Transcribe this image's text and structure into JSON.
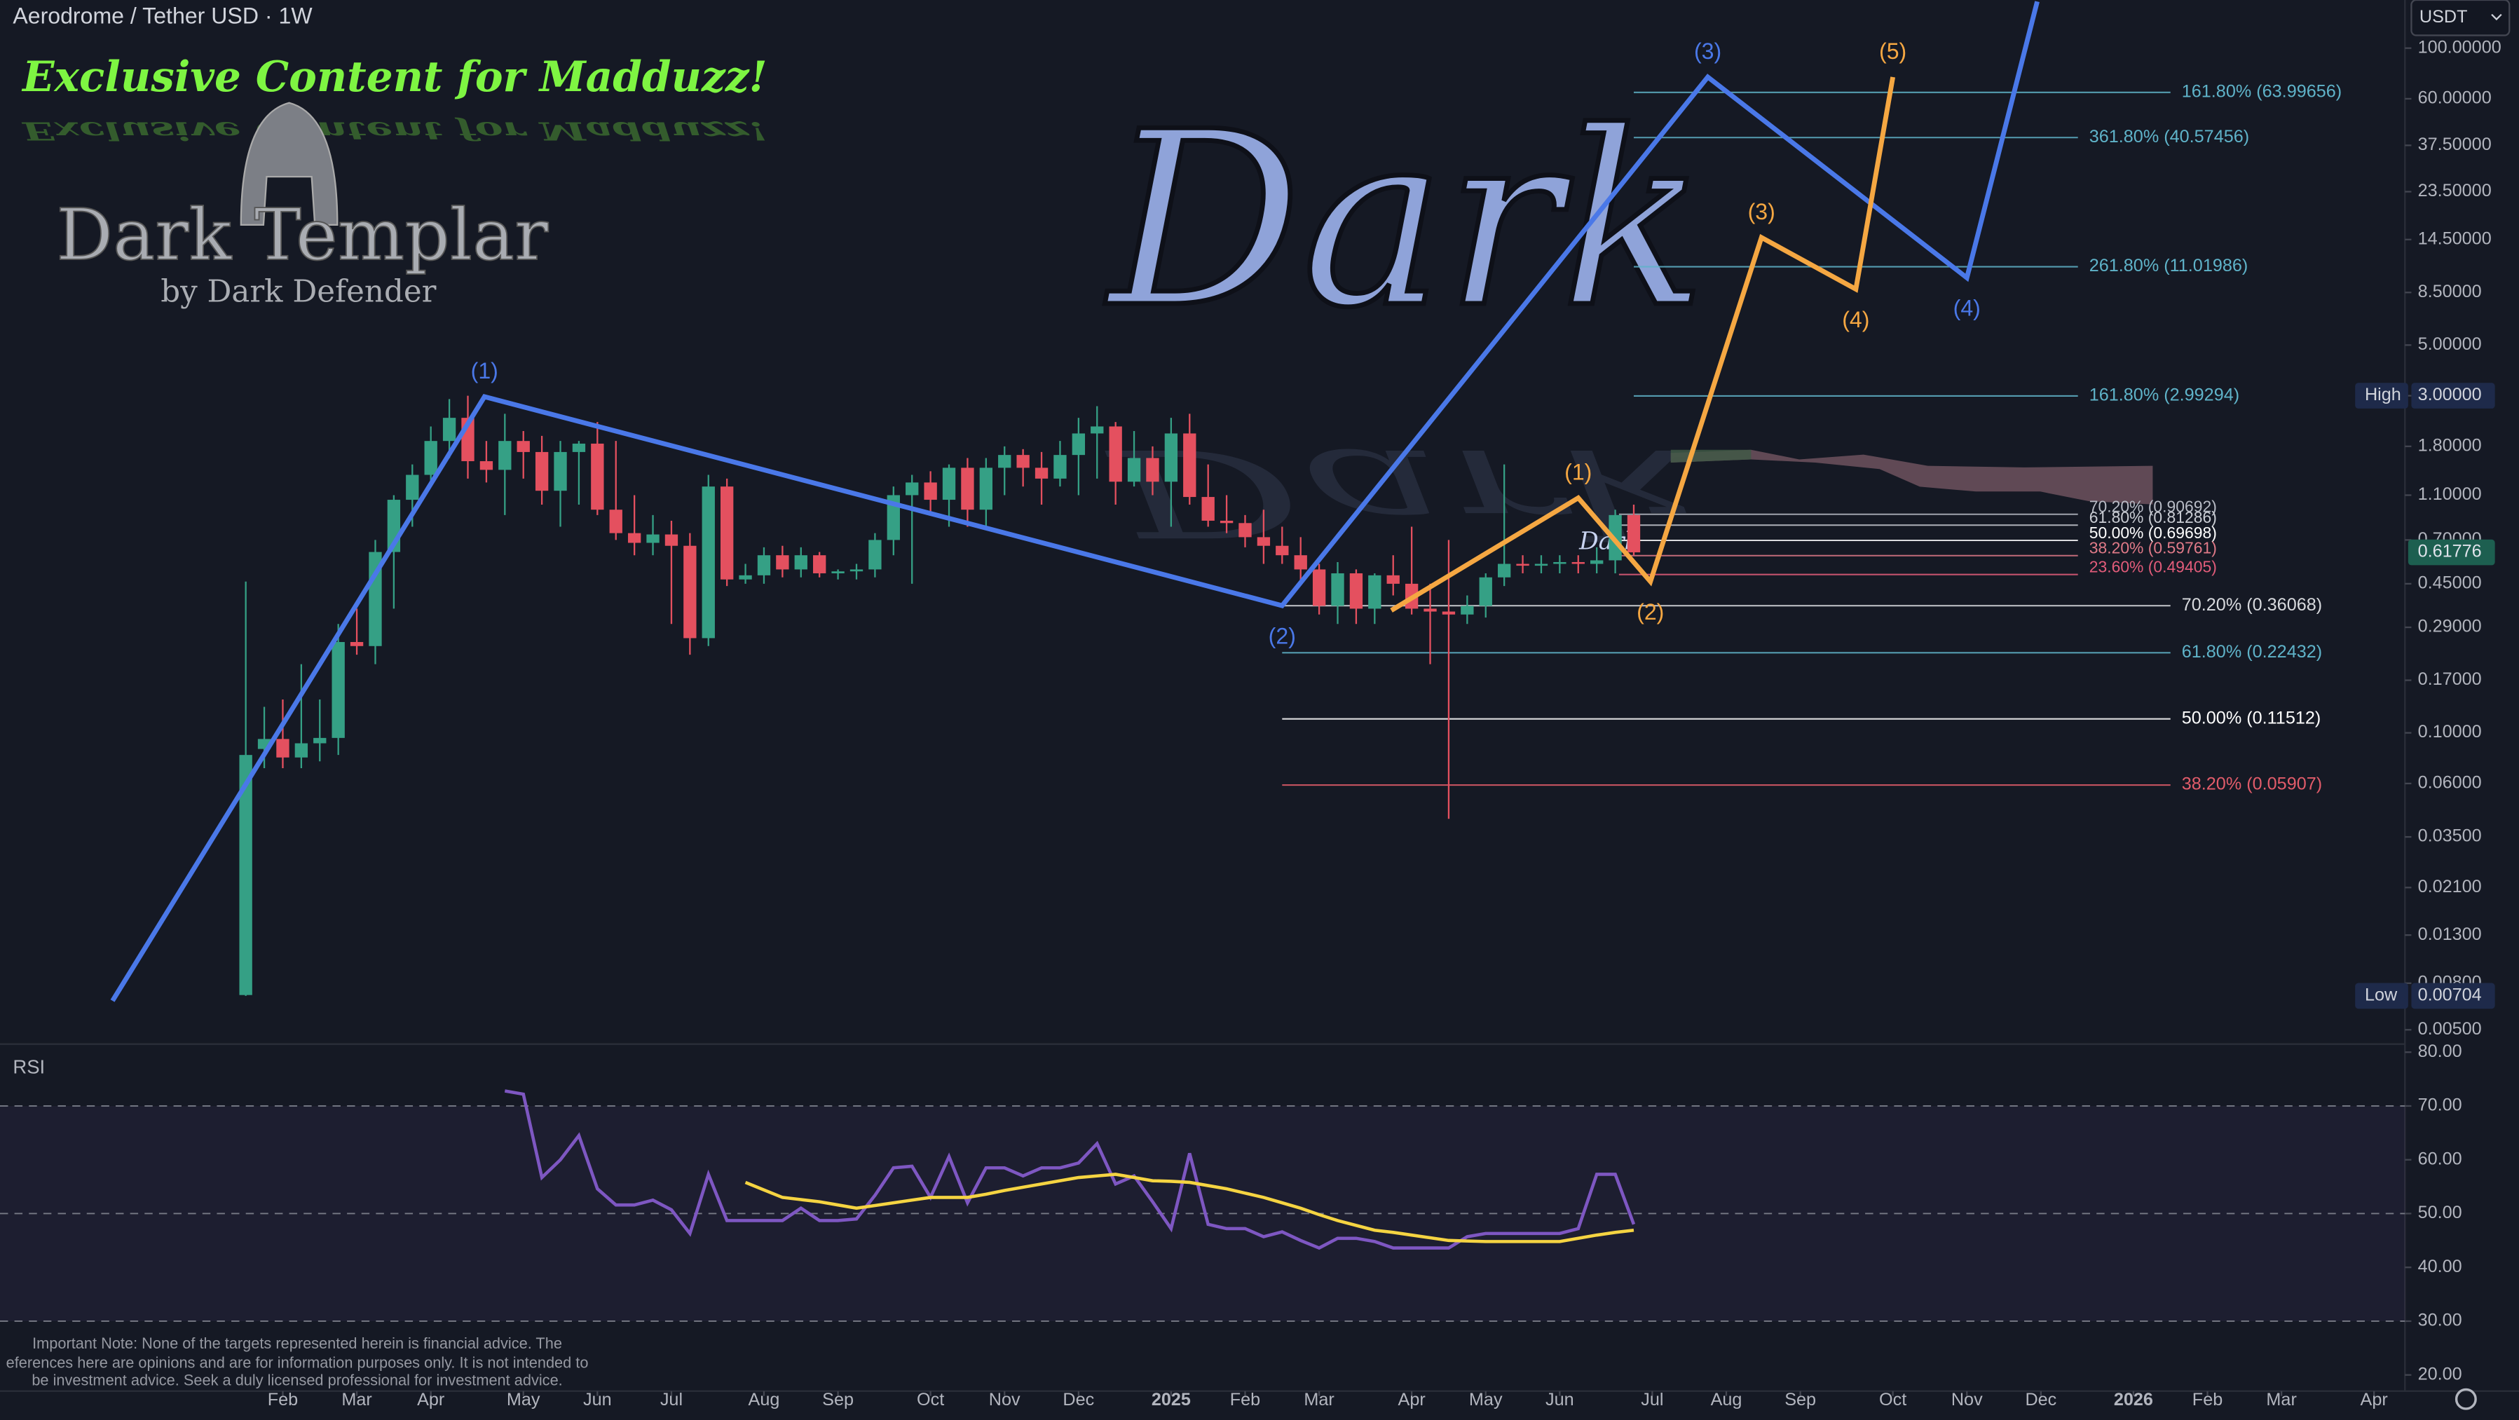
{
  "chart_data": [
    {
      "type": "candlestick",
      "title": "Aerodrome / Tether USD · 1W",
      "open": [
        0.0071,
        0.085,
        0.094,
        0.078,
        0.09,
        0.095,
        0.25,
        0.24,
        0.62,
        1.05,
        1.35,
        1.9,
        2.4,
        1.55,
        1.42,
        1.9,
        1.7,
        1.15,
        1.7,
        1.85,
        0.95,
        0.75,
        0.68,
        0.74,
        0.66,
        0.26,
        1.2,
        0.47,
        0.49,
        0.6,
        0.52,
        0.6,
        0.5,
        0.51,
        0.52,
        0.7,
        1.1,
        1.25,
        1.05,
        1.45,
        0.95,
        1.45,
        1.65,
        1.45,
        1.3,
        1.65,
        2.05,
        2.2,
        1.26,
        1.6,
        1.26,
        2.05,
        1.08,
        0.85,
        0.83,
        0.72,
        0.66,
        0.6,
        0.52,
        0.36,
        0.5,
        0.35,
        0.49,
        0.45,
        0.35,
        0.34,
        0.33,
        0.36,
        0.48,
        0.55,
        0.54,
        0.55,
        0.56,
        0.55,
        0.57,
        0.9
      ],
      "high": [
        0.46,
        0.13,
        0.14,
        0.2,
        0.14,
        0.3,
        0.35,
        0.7,
        1.1,
        1.5,
        2.2,
        2.9,
        3.0,
        1.9,
        2.5,
        2.1,
        2.0,
        1.9,
        1.9,
        2.3,
        1.9,
        1.1,
        0.9,
        0.85,
        0.75,
        1.35,
        1.3,
        0.55,
        0.65,
        0.66,
        0.65,
        0.62,
        0.52,
        0.55,
        0.75,
        1.2,
        1.35,
        1.4,
        1.5,
        1.6,
        1.6,
        1.8,
        1.75,
        1.7,
        1.9,
        2.4,
        2.7,
        2.3,
        2.1,
        1.8,
        2.4,
        2.5,
        1.5,
        1.1,
        0.9,
        0.95,
        0.8,
        0.72,
        0.55,
        0.56,
        0.52,
        0.5,
        0.6,
        0.8,
        0.45,
        0.7,
        0.4,
        0.5,
        1.5,
        0.6,
        0.6,
        0.6,
        0.6,
        0.65,
        0.95,
        1.0
      ],
      "low": [
        0.00704,
        0.07,
        0.07,
        0.07,
        0.075,
        0.08,
        0.22,
        0.2,
        0.35,
        0.8,
        1.2,
        1.6,
        1.3,
        1.25,
        0.9,
        1.3,
        1.0,
        0.8,
        1.0,
        0.9,
        0.7,
        0.6,
        0.6,
        0.3,
        0.22,
        0.24,
        0.44,
        0.45,
        0.45,
        0.48,
        0.48,
        0.48,
        0.47,
        0.47,
        0.48,
        0.6,
        0.45,
        0.9,
        0.8,
        0.8,
        0.8,
        1.1,
        1.2,
        1.0,
        1.2,
        1.1,
        1.3,
        1.0,
        1.2,
        1.1,
        0.8,
        1.0,
        0.8,
        0.75,
        0.65,
        0.55,
        0.55,
        0.45,
        0.33,
        0.3,
        0.3,
        0.3,
        0.4,
        0.33,
        0.2,
        0.042,
        0.3,
        0.32,
        0.44,
        0.5,
        0.5,
        0.5,
        0.5,
        0.5,
        0.5,
        0.6
      ],
      "close": [
        0.08,
        0.094,
        0.078,
        0.09,
        0.095,
        0.25,
        0.24,
        0.62,
        1.05,
        1.35,
        1.9,
        2.4,
        1.55,
        1.42,
        1.9,
        1.7,
        1.15,
        1.7,
        1.85,
        0.95,
        0.75,
        0.68,
        0.74,
        0.66,
        0.26,
        1.2,
        0.47,
        0.49,
        0.6,
        0.52,
        0.6,
        0.5,
        0.51,
        0.52,
        0.7,
        1.1,
        1.25,
        1.05,
        1.45,
        0.95,
        1.45,
        1.65,
        1.45,
        1.3,
        1.65,
        2.05,
        2.2,
        1.26,
        1.6,
        1.26,
        2.05,
        1.08,
        0.85,
        0.83,
        0.72,
        0.66,
        0.6,
        0.52,
        0.36,
        0.5,
        0.35,
        0.49,
        0.45,
        0.35,
        0.34,
        0.33,
        0.36,
        0.48,
        0.55,
        0.54,
        0.55,
        0.56,
        0.55,
        0.57,
        0.9,
        0.61776
      ],
      "up_color": "#35a085",
      "down_color": "#e4505f",
      "log_scale": true,
      "xlim": [
        -13.28,
        116.67
      ],
      "xticks": [
        {
          "value": 2,
          "label": "Feb"
        },
        {
          "value": 6,
          "label": "Mar"
        },
        {
          "value": 10,
          "label": "Apr"
        },
        {
          "value": 15,
          "label": "May"
        },
        {
          "value": 19,
          "label": "Jun"
        },
        {
          "value": 23,
          "label": "Jul"
        },
        {
          "value": 28,
          "label": "Aug"
        },
        {
          "value": 32,
          "label": "Sep"
        },
        {
          "value": 37,
          "label": "Oct"
        },
        {
          "value": 41,
          "label": "Nov"
        },
        {
          "value": 45,
          "label": "Dec"
        },
        {
          "value": 50,
          "label": "2025"
        },
        {
          "value": 54,
          "label": "Feb"
        },
        {
          "value": 58,
          "label": "Mar"
        },
        {
          "value": 63,
          "label": "Apr"
        },
        {
          "value": 67,
          "label": "May"
        },
        {
          "value": 71,
          "label": "Jun"
        },
        {
          "value": 76,
          "label": "Jul"
        },
        {
          "value": 80,
          "label": "Aug"
        },
        {
          "value": 84,
          "label": "Sep"
        },
        {
          "value": 89,
          "label": "Oct"
        },
        {
          "value": 93,
          "label": "Nov"
        },
        {
          "value": 97,
          "label": "Dec"
        },
        {
          "value": 102,
          "label": "2026"
        },
        {
          "value": 106,
          "label": "Feb"
        },
        {
          "value": 110,
          "label": "Mar"
        },
        {
          "value": 115,
          "label": "Apr"
        }
      ],
      "ylim": [
        0.00447,
        162.5
      ],
      "yticks": [
        {
          "value": 100,
          "label": "100.00000"
        },
        {
          "value": 60,
          "label": "60.00000"
        },
        {
          "value": 37.5,
          "label": "37.50000"
        },
        {
          "value": 23.5,
          "label": "23.50000"
        },
        {
          "value": 14.5,
          "label": "14.50000"
        },
        {
          "value": 8.5,
          "label": "8.50000"
        },
        {
          "value": 5,
          "label": "5.00000"
        },
        {
          "value": 3,
          "label": "3.00000"
        },
        {
          "value": 1.8,
          "label": "1.80000"
        },
        {
          "value": 1.1,
          "label": "1.10000"
        },
        {
          "value": 0.7,
          "label": "0.70000"
        },
        {
          "value": 0.45,
          "label": "0.45000"
        },
        {
          "value": 0.29,
          "label": "0.29000"
        },
        {
          "value": 0.17,
          "label": "0.17000"
        },
        {
          "value": 0.1,
          "label": "0.10000"
        },
        {
          "value": 0.06,
          "label": "0.06000"
        },
        {
          "value": 0.035,
          "label": "0.03500"
        },
        {
          "value": 0.021,
          "label": "0.02100"
        },
        {
          "value": 0.013,
          "label": "0.01300"
        },
        {
          "value": 0.008,
          "label": "0.00800"
        },
        {
          "value": 0.005,
          "label": "0.00500"
        }
      ],
      "high_badge": {
        "name": "High",
        "value": 3,
        "label": "3.00000"
      },
      "low_badge": {
        "name": "Low",
        "value": 0.00704,
        "label": "0.00704"
      },
      "last_price": 0.61776,
      "currency": "USDT",
      "waves": [
        {
          "color": "#4a78e8",
          "points": [
            {
              "x": -7.2,
              "y": 0.0067
            },
            {
              "x": 12.9,
              "y": 2.97,
              "label": "(1)"
            },
            {
              "x": 56.0,
              "y": 0.361,
              "label": "(2)"
            },
            {
              "x": 79.0,
              "y": 74.7,
              "label": "(3)"
            },
            {
              "x": 93.0,
              "y": 9.86,
              "label": "(4)"
            },
            {
              "x": 96.8,
              "y": 160
            }
          ]
        },
        {
          "color": "#f5a742",
          "points": [
            {
              "x": 61.9,
              "y": 0.344
            },
            {
              "x": 72.0,
              "y": 1.07,
              "label": "(1)"
            },
            {
              "x": 75.9,
              "y": 0.46,
              "label": "(2)"
            },
            {
              "x": 81.9,
              "y": 14.8,
              "label": "(3)"
            },
            {
              "x": 87.0,
              "y": 8.79,
              "label": "(4)"
            },
            {
              "x": 89.0,
              "y": 74.7,
              "label": "(5)"
            }
          ]
        }
      ],
      "fib_levels": [
        [
          {
            "value": 63.99656,
            "label": "161.80% (63.99656)",
            "color": "#5fb3c9"
          },
          {
            "value": 40.57456,
            "label": "361.80% (40.57456)",
            "color": "#5fb3c9"
          },
          {
            "value": 11.01986,
            "label": "261.80% (11.01986)",
            "color": "#5fb3c9"
          },
          {
            "value": 2.99294,
            "label": "161.80% (2.99294)",
            "color": "#5fb3c9"
          }
        ],
        [
          {
            "value": 0.90692,
            "label": "70.20% (0.90692)",
            "color": "#b8bcc6"
          },
          {
            "value": 0.81286,
            "label": "61.80% (0.81286)",
            "color": "#c9ccd3"
          },
          {
            "value": 0.69698,
            "label": "50.00% (0.69698)",
            "color": "#ffffff"
          },
          {
            "value": 0.59761,
            "label": "38.20% (0.59761)",
            "color": "#e07a88"
          },
          {
            "value": 0.49405,
            "label": "23.60% (0.49405)",
            "color": "#e25c7a"
          }
        ],
        [
          {
            "value": 0.36068,
            "label": "70.20% (0.36068)",
            "color": "#d8dade"
          },
          {
            "value": 0.22432,
            "label": "61.80% (0.22432)",
            "color": "#5fb3c9"
          },
          {
            "value": 0.11512,
            "label": "50.00% (0.11512)",
            "color": "#ffffff"
          },
          {
            "value": 0.05907,
            "label": "38.20% (0.05907)",
            "color": "#e25c6a"
          }
        ]
      ]
    },
    {
      "type": "line",
      "title": "RSI",
      "series": [
        {
          "color": "#7e57c2",
          "values": [
            null,
            null,
            null,
            null,
            null,
            null,
            null,
            null,
            null,
            null,
            null,
            null,
            null,
            null,
            72.8,
            72.2,
            56.7,
            60,
            64.5,
            54.6,
            51.6,
            51.6,
            52.5,
            50.7,
            46.3,
            57.3,
            48.7,
            48.7,
            48.7,
            48.7,
            51,
            48.7,
            48.7,
            49,
            53.4,
            58.5,
            58.8,
            53,
            60.6,
            52,
            58.5,
            58.5,
            57,
            58.5,
            58.5,
            59.4,
            63,
            55.5,
            57,
            52.2,
            47.2,
            61.2,
            48,
            47.2,
            47.2,
            45.7,
            46.6,
            45,
            43.6,
            45.4,
            45.4,
            44.8,
            43.6,
            43.6,
            43.6,
            43.6,
            45.7,
            46.3,
            46.3,
            46.3,
            46.3,
            46.3,
            47.2,
            57.3,
            57.3,
            48
          ]
        },
        {
          "color": "#f5d442",
          "values": [
            null,
            null,
            null,
            null,
            null,
            null,
            null,
            null,
            null,
            null,
            null,
            null,
            null,
            null,
            null,
            null,
            null,
            null,
            null,
            null,
            null,
            null,
            null,
            null,
            null,
            null,
            null,
            55.8,
            54.4,
            53,
            52.6,
            52.2,
            51.6,
            51,
            51.5,
            52,
            52.5,
            53,
            53,
            53,
            53.6,
            54.3,
            54.9,
            55.5,
            56.1,
            56.7,
            57,
            57.3,
            56.7,
            56.1,
            56,
            55.8,
            55.2,
            54.6,
            53.8,
            53,
            52,
            51,
            49.8,
            48.7,
            47.8,
            46.9,
            46.5,
            46,
            45.5,
            45,
            44.9,
            44.8,
            44.8,
            44.8,
            44.8,
            44.8,
            45.4,
            46,
            46.5,
            46.9
          ]
        }
      ],
      "ylim": [
        17,
        81.5
      ],
      "yticks": [
        {
          "value": 80,
          "label": "80.00"
        },
        {
          "value": 70,
          "label": "70.00"
        },
        {
          "value": 60,
          "label": "60.00"
        },
        {
          "value": 50,
          "label": "50.00"
        },
        {
          "value": 40,
          "label": "40.00"
        },
        {
          "value": 30,
          "label": "30.00"
        },
        {
          "value": 20,
          "label": "20.00"
        }
      ],
      "levels": [
        70,
        50,
        30
      ],
      "band": [
        30,
        70
      ]
    }
  ],
  "watermark": {
    "headline": "Exclusive Content for Madduzz!",
    "brand": "Dark Templar",
    "byline": "by Dark Defender",
    "mark": "Dark"
  },
  "note": [
    "Important Note: None of the targets represented herein is financial advice. The",
    "eferences here are opinions and are for information purposes only. It is not intended to",
    "be investment advice. Seek a duly licensed professional for investment advice."
  ]
}
